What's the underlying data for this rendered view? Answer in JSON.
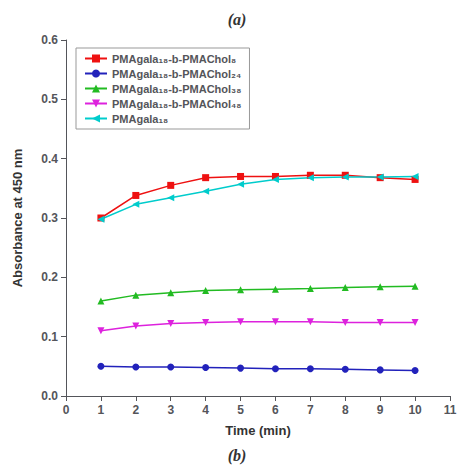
{
  "chart_data": {
    "type": "line",
    "title": "(a)",
    "annotations": [
      "(b)"
    ],
    "x_label": "Time (min)",
    "y_label": "Absorbance at 450 nm",
    "x": [
      1,
      2,
      3,
      4,
      5,
      6,
      7,
      8,
      9,
      10
    ],
    "xlim": [
      0,
      11
    ],
    "xticks": [
      0,
      1,
      2,
      3,
      4,
      5,
      6,
      7,
      8,
      9,
      10,
      11
    ],
    "ylim": [
      0.0,
      0.6
    ],
    "yticks": [
      {
        "value": 0,
        "label": "0.0"
      },
      0.1,
      0.2,
      0.3,
      0.4,
      0.5,
      0.6
    ],
    "grid": false,
    "legend": "upper left",
    "series": [
      {
        "name": "PMAgala₁₈-b-PMAChol₈",
        "color": "#EE1111",
        "marker": "square",
        "values": [
          0.3,
          0.338,
          0.355,
          0.368,
          0.37,
          0.37,
          0.372,
          0.372,
          0.368,
          0.365
        ]
      },
      {
        "name": "PMAgala₁₈-b-PMAChol₂₄",
        "color": "#2222BB",
        "marker": "circle",
        "values": [
          0.05,
          0.049,
          0.049,
          0.048,
          0.047,
          0.046,
          0.046,
          0.045,
          0.044,
          0.043
        ]
      },
      {
        "name": "PMAgala₁₈-b-PMAChol₃₈",
        "color": "#22BB22",
        "marker": "triangle-up",
        "values": [
          0.16,
          0.17,
          0.174,
          0.178,
          0.179,
          0.18,
          0.181,
          0.183,
          0.184,
          0.185
        ]
      },
      {
        "name": "PMAgala₁₈-b-PMAChol₄₈",
        "color": "#DD22DD",
        "marker": "triangle-down",
        "values": [
          0.11,
          0.118,
          0.122,
          0.124,
          0.125,
          0.125,
          0.125,
          0.124,
          0.124,
          0.124
        ]
      },
      {
        "name": "PMAgala₁₈",
        "color": "#00CCCC",
        "marker": "triangle-left",
        "values": [
          0.298,
          0.323,
          0.334,
          0.345,
          0.357,
          0.365,
          0.368,
          0.369,
          0.369,
          0.37
        ]
      }
    ]
  }
}
